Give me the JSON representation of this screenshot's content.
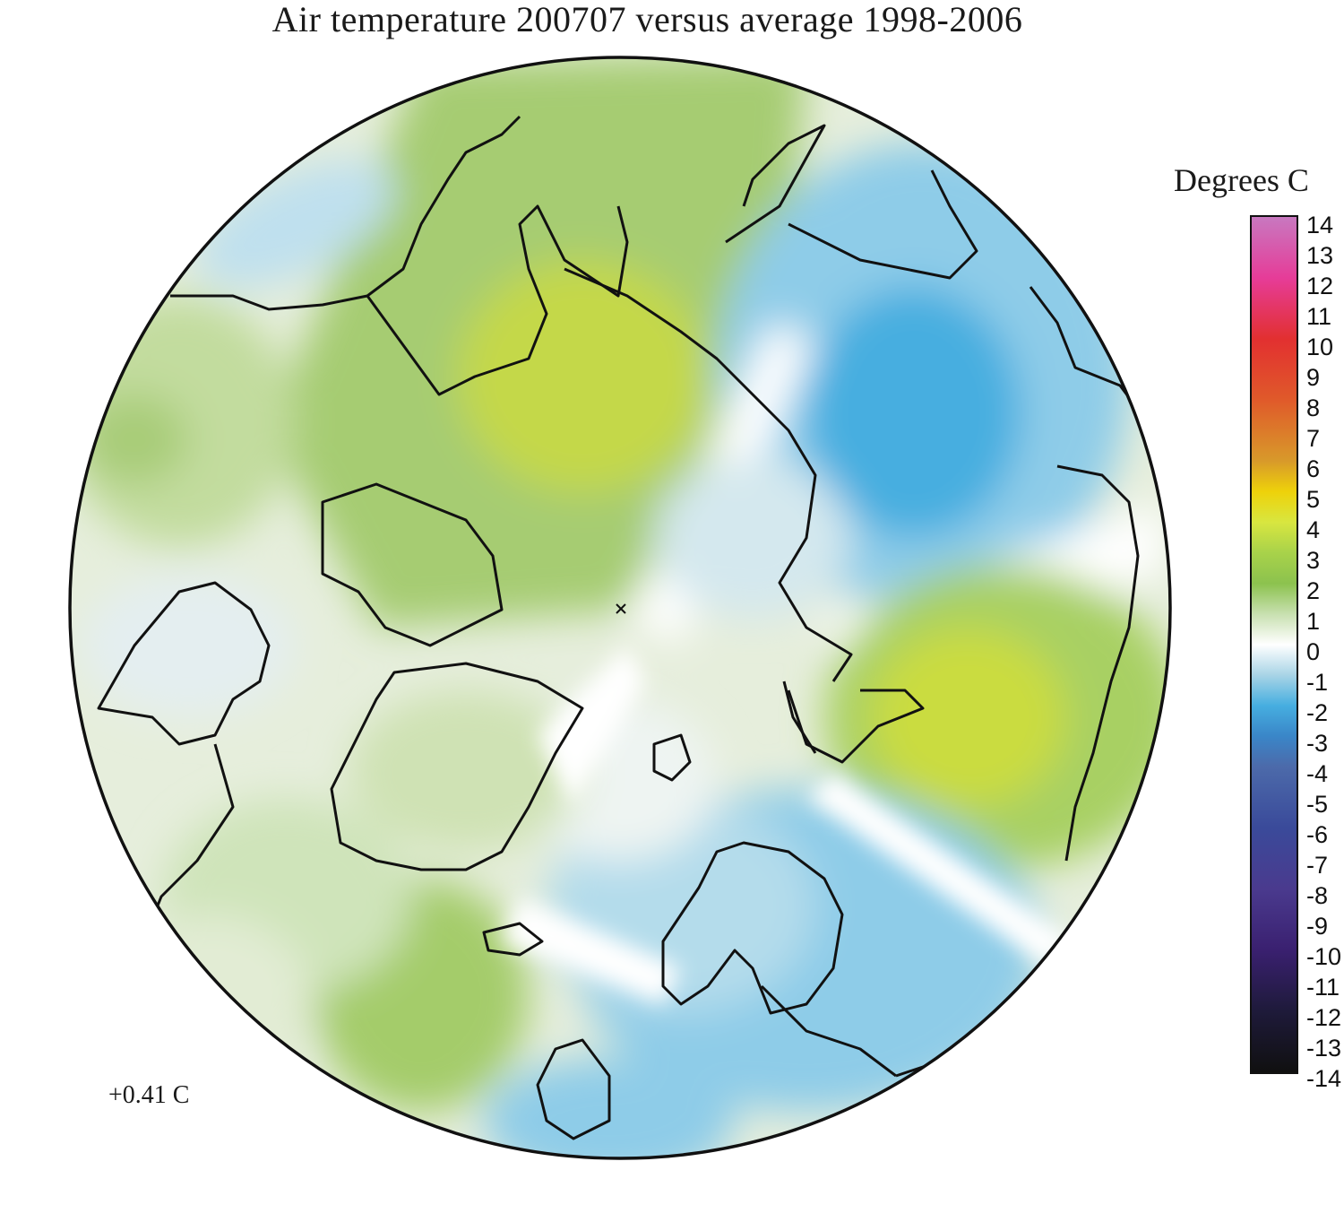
{
  "title": "Air temperature 200707 versus average 1998-2006",
  "legend": {
    "title": "Degrees C",
    "ticks": [
      "14",
      "13",
      "12",
      "11",
      "10",
      "9",
      "8",
      "7",
      "6",
      "5",
      "4",
      "3",
      "2",
      "1",
      "0",
      "-1",
      "-2",
      "-3",
      "-4",
      "-5",
      "-6",
      "-7",
      "-8",
      "-9",
      "-10",
      "-11",
      "-12",
      "-13",
      "-14"
    ],
    "colors": {
      "14": "#c878c0",
      "12": "#e63c98",
      "10": "#e23030",
      "8": "#e05a2a",
      "6": "#d89a2a",
      "5": "#eed20a",
      "4": "#d8e640",
      "3": "#a8d24a",
      "2": "#8cc24e",
      "1": "#c8e0b0",
      "0": "#ffffff",
      "-1": "#a8d4e6",
      "-2": "#46aee0",
      "-3": "#3a86c8",
      "-4": "#4c6aaa",
      "-6": "#3a4a9a",
      "-8": "#4a3a8e",
      "-10": "#3a2070",
      "-12": "#1e1a3a",
      "-14": "#101010"
    }
  },
  "mean_anomaly": "+0.41 C",
  "map": {
    "projection": "north polar stereographic",
    "center_marker": "north-pole-cross"
  }
}
